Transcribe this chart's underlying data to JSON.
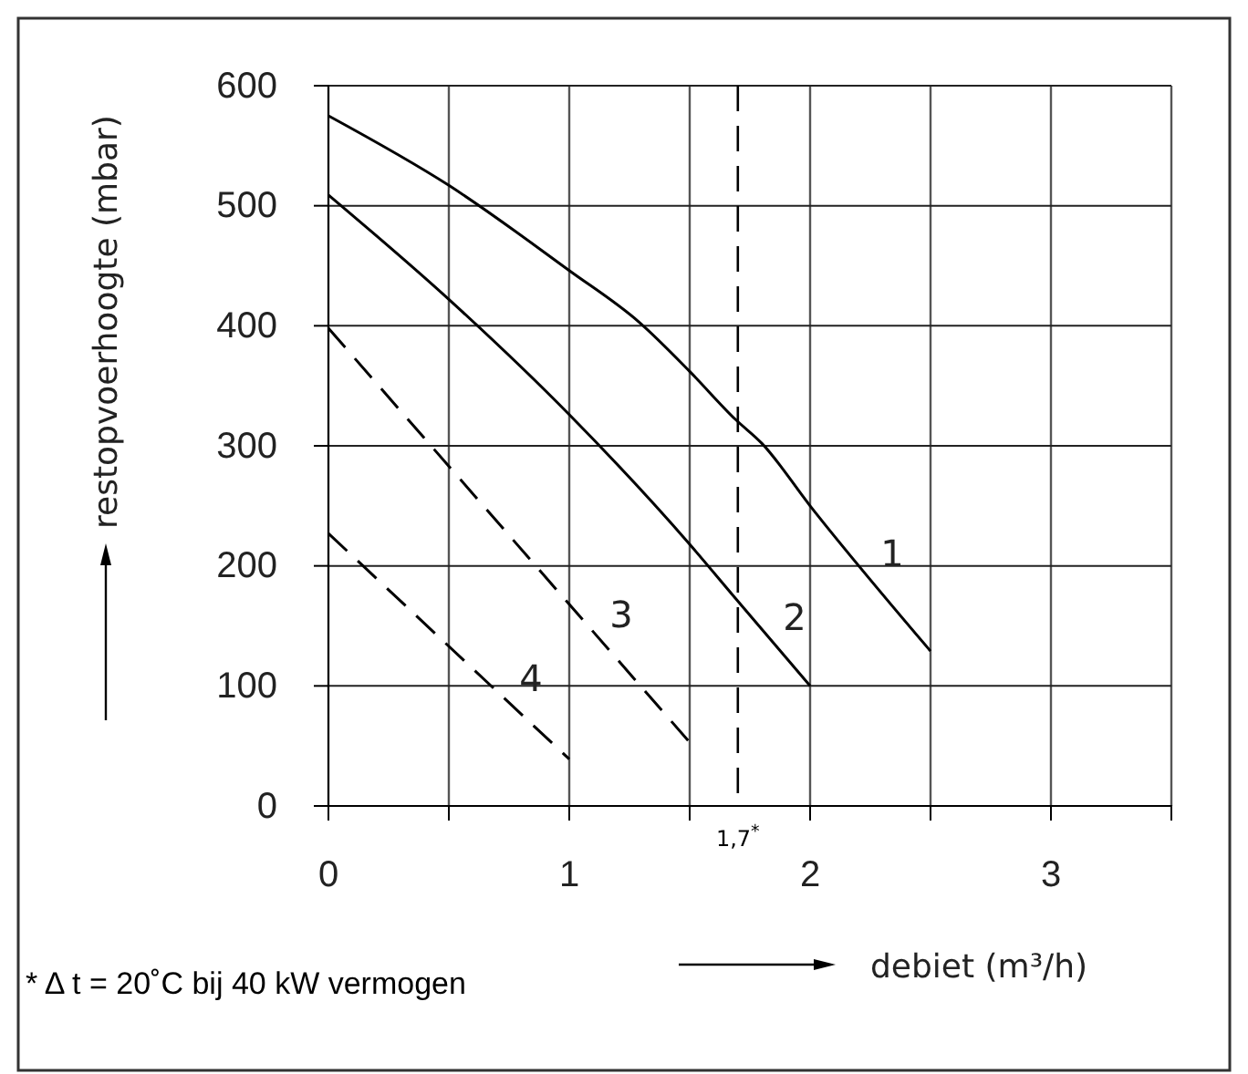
{
  "chart_data": {
    "type": "line",
    "xlabel": "debiet (m³/h)",
    "ylabel": "restopvoerhoogte (mbar)",
    "xlim": [
      0,
      3.5
    ],
    "ylim": [
      0,
      600
    ],
    "xticks": [
      0,
      {
        "value": 0.5,
        "label": null
      },
      1,
      {
        "value": 1.5,
        "label": null
      },
      2,
      {
        "value": 2.5,
        "label": null
      },
      3,
      {
        "value": 3.5,
        "label": null
      }
    ],
    "yticks": [
      0,
      100,
      200,
      300,
      400,
      500,
      600
    ],
    "grid": true,
    "marker": "none",
    "series": [
      {
        "name": "1",
        "color": "#000000",
        "line_style": "solid",
        "x": [
          0,
          0.5,
          1,
          1.29,
          1.5,
          1.69,
          1.8,
          2,
          2.5
        ],
        "values": [
          575,
          517,
          446,
          403,
          362,
          322,
          302,
          250,
          129
        ]
      },
      {
        "name": "2",
        "color": "#000000",
        "line_style": "solid",
        "x": [
          0,
          0.5,
          1,
          1.5,
          1.69,
          2
        ],
        "values": [
          509,
          422,
          326,
          218,
          173,
          100
        ]
      },
      {
        "name": "3",
        "color": "#000000",
        "line_style": "dashed",
        "x": [
          0,
          1.5
        ],
        "values": [
          398,
          53
        ]
      },
      {
        "name": "4",
        "color": "#000000",
        "line_style": "dashed",
        "x": [
          0,
          1
        ],
        "values": [
          227,
          39
        ]
      }
    ],
    "ref_lines": [
      {
        "axis": "x",
        "value": 1.7,
        "label": "1,7$^{*}$",
        "line_style": "dashed",
        "color": "#000000"
      }
    ],
    "annotations": [
      "* Δ t = 20˚C bij 40 kW vermogen"
    ]
  }
}
